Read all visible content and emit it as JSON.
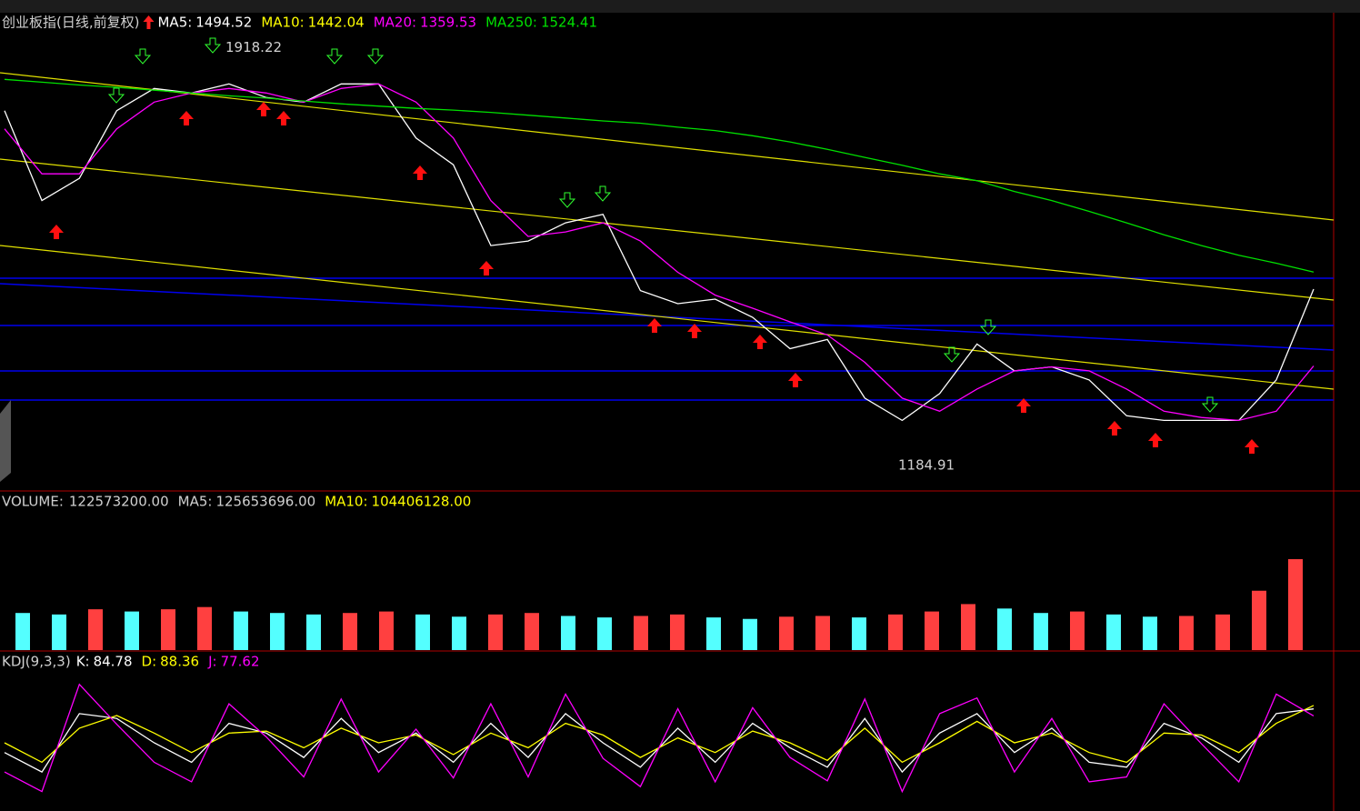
{
  "chart_data": [
    {
      "type": "line",
      "title": "创业板指(日线,前复权)",
      "title_color": "#d0d0d0",
      "legend": [
        {
          "label": "MA5:",
          "value": "1494.52",
          "color": "#ffffff"
        },
        {
          "label": "MA10:",
          "value": "1442.04",
          "color": "#ffff00"
        },
        {
          "label": "MA20:",
          "value": "1359.53",
          "color": "#ff00ff"
        },
        {
          "label": "MA250:",
          "value": "1524.41",
          "color": "#00e000"
        }
      ],
      "series": [
        {
          "color": "#ffffff",
          "values": [
            1808,
            1650,
            1689,
            1808,
            1847,
            1839,
            1855,
            1831,
            1823,
            1855,
            1855,
            1760,
            1713,
            1571,
            1579,
            1611,
            1626,
            1492,
            1469,
            1477,
            1445,
            1390,
            1406,
            1303,
            1264,
            1311,
            1398,
            1351,
            1358,
            1335,
            1272,
            1264,
            1264,
            1264,
            1335,
            1494.52
          ]
        },
        {
          "color": "#ff00ff",
          "values": [
            1776,
            1697,
            1697,
            1776,
            1823,
            1839,
            1847,
            1839,
            1823,
            1847,
            1855,
            1823,
            1760,
            1650,
            1587,
            1595,
            1611,
            1579,
            1524,
            1484,
            1461,
            1437,
            1414,
            1366,
            1303,
            1280,
            1319,
            1351,
            1358,
            1351,
            1319,
            1280,
            1269,
            1264,
            1280,
            1359.53
          ]
        },
        {
          "color": "#00e000",
          "values": [
            1863,
            1858,
            1853,
            1849,
            1844,
            1839,
            1834,
            1830,
            1825,
            1820,
            1816,
            1812,
            1809,
            1805,
            1800,
            1795,
            1790,
            1786,
            1779,
            1773,
            1764,
            1753,
            1740,
            1726,
            1712,
            1697,
            1685,
            1666,
            1650,
            1631,
            1611,
            1590,
            1571,
            1554,
            1540,
            1524.41
          ]
        }
      ],
      "ylim": [
        1140,
        1980
      ],
      "annotations": [
        {
          "text": "1918.22",
          "value": 1918.22
        },
        {
          "text": "1184.91",
          "value": 1184.91
        }
      ]
    },
    {
      "type": "bar",
      "title": "VOLUME:",
      "title_value": "122573200.00",
      "title_color": "#d0d0d0",
      "legend": [
        {
          "label": "MA5:",
          "value": "125653696.00",
          "color": "#d0d0d0"
        },
        {
          "label": "MA10:",
          "value": "104406128.00",
          "color": "#ffff00"
        }
      ],
      "up_color": "#ff4040",
      "down_color": "#54ffff",
      "values": [
        50000000,
        48000000,
        55000000,
        52000000,
        55000000,
        58000000,
        52000000,
        50000000,
        48000000,
        50000000,
        52000000,
        48000000,
        45000000,
        48000000,
        50000000,
        46000000,
        44000000,
        46000000,
        48000000,
        44000000,
        42000000,
        45000000,
        46000000,
        44000000,
        48000000,
        52000000,
        62000000,
        56000000,
        50000000,
        52000000,
        48000000,
        45000000,
        46000000,
        48000000,
        80000000,
        122573200
      ],
      "ylim": [
        0,
        190000000
      ]
    },
    {
      "type": "line",
      "title": "KDJ(9,3,3)",
      "title_color": "#d0d0d0",
      "legend": [
        {
          "label": "K:",
          "value": "84.78",
          "color": "#ffffff"
        },
        {
          "label": "D:",
          "value": "88.36",
          "color": "#ffff00"
        },
        {
          "label": "J:",
          "value": "77.62",
          "color": "#ff00ff"
        }
      ],
      "series": [
        {
          "color": "#ffffff",
          "values": [
            40,
            20,
            80,
            75,
            50,
            30,
            70,
            60,
            35,
            75,
            40,
            60,
            30,
            70,
            35,
            80,
            50,
            25,
            65,
            30,
            70,
            45,
            25,
            75,
            20,
            60,
            80,
            40,
            65,
            30,
            25,
            70,
            55,
            30,
            80,
            84.78
          ]
        },
        {
          "color": "#ffff00",
          "values": [
            50,
            30,
            65,
            78,
            60,
            40,
            60,
            62,
            45,
            65,
            50,
            58,
            38,
            60,
            45,
            70,
            58,
            35,
            55,
            40,
            62,
            50,
            32,
            65,
            30,
            50,
            72,
            50,
            60,
            40,
            30,
            60,
            58,
            40,
            70,
            88.36
          ]
        },
        {
          "color": "#ff00ff",
          "values": [
            20,
            0,
            110,
            69,
            30,
            10,
            90,
            56,
            15,
            95,
            20,
            64,
            14,
            90,
            15,
            100,
            34,
            5,
            85,
            10,
            86,
            35,
            11,
            95,
            0,
            80,
            96,
            20,
            75,
            10,
            15,
            90,
            49,
            10,
            100,
            77.62
          ]
        }
      ],
      "ylim": [
        -20,
        120
      ]
    }
  ]
}
